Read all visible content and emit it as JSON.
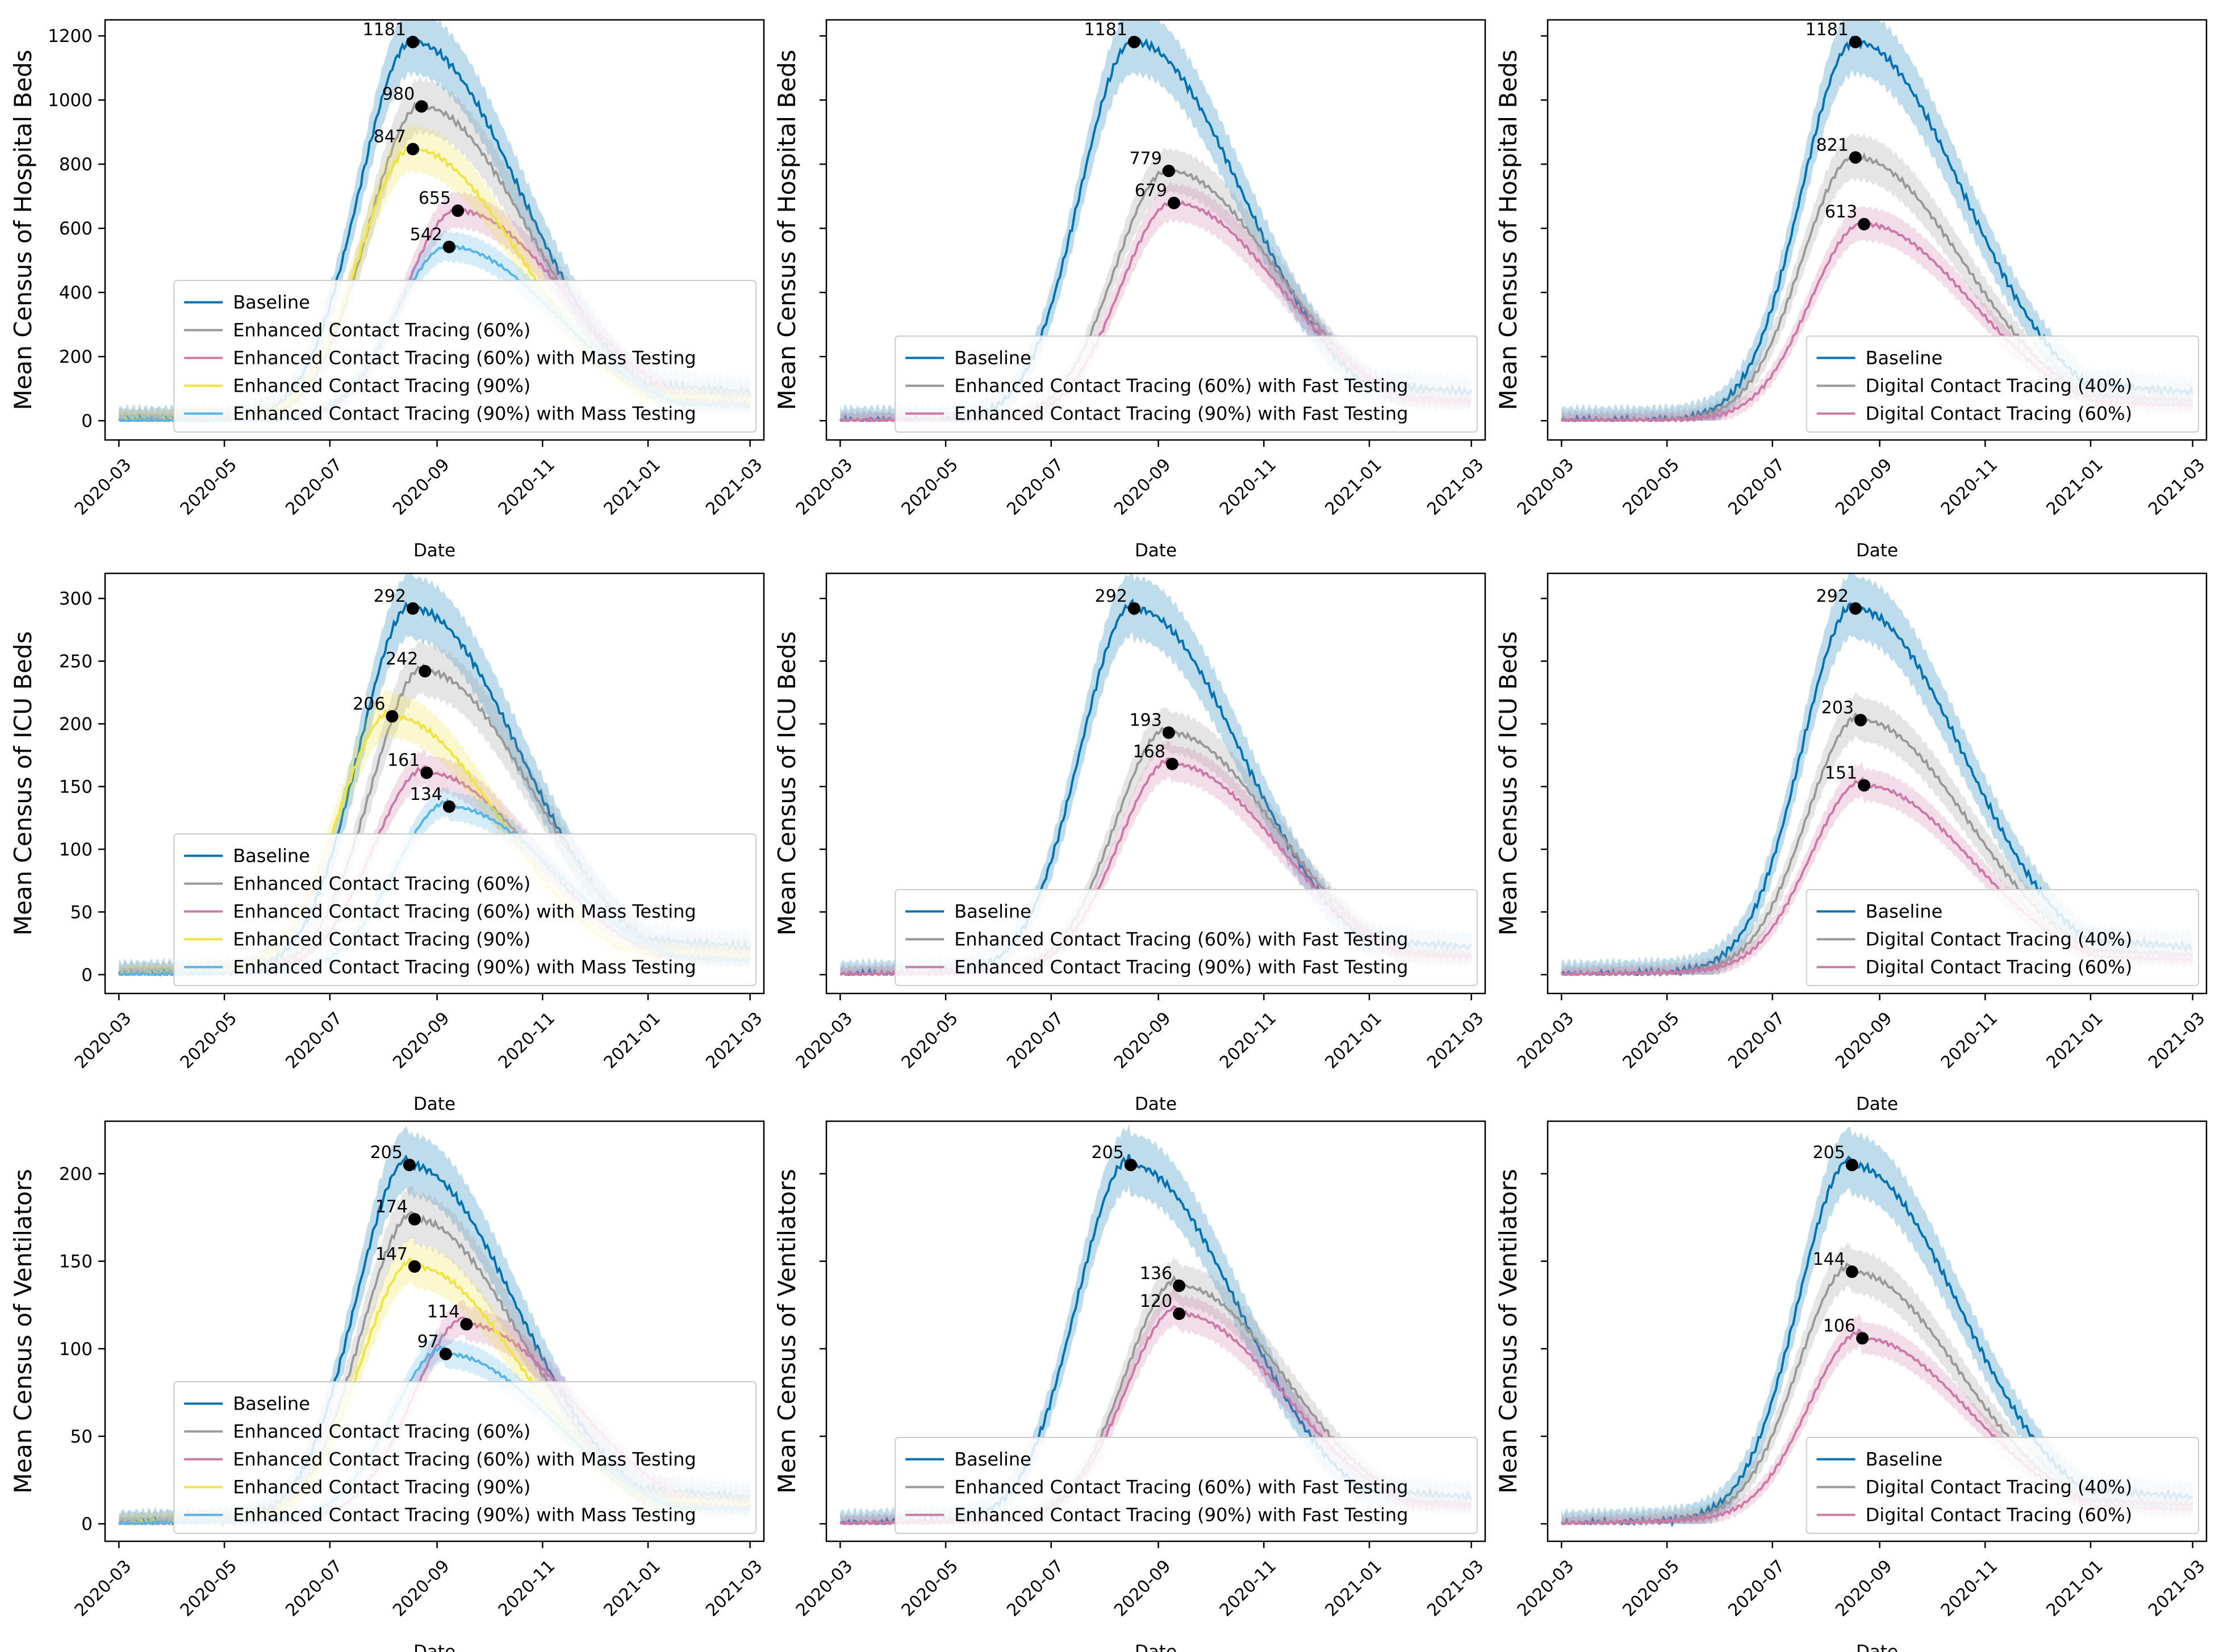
{
  "figure": {
    "date_xlabel": "Date",
    "date_ticks": [
      "2020-03",
      "2020-05",
      "2020-07",
      "2020-09",
      "2020-11",
      "2021-01",
      "2021-03"
    ],
    "date_tick_values": [
      0,
      61,
      122,
      184,
      245,
      306,
      365
    ],
    "x_range": [
      -8,
      373
    ]
  },
  "colors": {
    "baseline": "#0072B2",
    "enhanced_60": "#999999",
    "enhanced_60_mass": "#CC79A7",
    "enhanced_90": "#F0E442",
    "enhanced_90_mass": "#56B4E9",
    "enhanced_60_fast": "#999999",
    "enhanced_90_fast": "#CC79A7",
    "digital_40": "#999999",
    "digital_60": "#CC79A7",
    "peak_marker": "#000000"
  },
  "chart_data": [
    {
      "id": "p11",
      "type": "line",
      "ylabel": "Mean Census of Hospital Beds",
      "ylim": [
        -60,
        1250
      ],
      "yticks": [
        0,
        200,
        400,
        600,
        800,
        1000,
        1200
      ],
      "show_yticklabels": true,
      "legend_position": "lower-right",
      "series": [
        {
          "name": "Baseline",
          "color_key": "baseline",
          "peak": 1181,
          "peak_day": 170
        },
        {
          "name": "Enhanced Contact Tracing (60%)",
          "color_key": "enhanced_60",
          "peak": 980,
          "peak_day": 175
        },
        {
          "name": "Enhanced Contact Tracing (60%) with Mass Testing",
          "color_key": "enhanced_60_mass",
          "peak": 655,
          "peak_day": 196
        },
        {
          "name": "Enhanced Contact Tracing (90%)",
          "color_key": "enhanced_90",
          "peak": 847,
          "peak_day": 170
        },
        {
          "name": "Enhanced Contact Tracing (90%) with Mass Testing",
          "color_key": "enhanced_90_mass",
          "peak": 542,
          "peak_day": 191
        }
      ]
    },
    {
      "id": "p12",
      "type": "line",
      "ylabel": "Mean Census of Hospital Beds",
      "ylim": [
        -60,
        1250
      ],
      "yticks": [
        0,
        200,
        400,
        600,
        800,
        1000,
        1200
      ],
      "show_yticklabels": false,
      "legend_position": "lower-right",
      "series": [
        {
          "name": "Baseline",
          "color_key": "baseline",
          "peak": 1181,
          "peak_day": 170
        },
        {
          "name": "Enhanced Contact Tracing (60%) with Fast Testing",
          "color_key": "enhanced_60_fast",
          "peak": 779,
          "peak_day": 190
        },
        {
          "name": "Enhanced Contact Tracing (90%) with Fast Testing",
          "color_key": "enhanced_90_fast",
          "peak": 679,
          "peak_day": 193
        }
      ]
    },
    {
      "id": "p13",
      "type": "line",
      "ylabel": "Mean Census of Hospital Beds",
      "ylim": [
        -60,
        1250
      ],
      "yticks": [
        0,
        200,
        400,
        600,
        800,
        1000,
        1200
      ],
      "show_yticklabels": false,
      "legend_position": "lower-right",
      "series": [
        {
          "name": "Baseline",
          "color_key": "baseline",
          "peak": 1181,
          "peak_day": 170
        },
        {
          "name": "Digital Contact Tracing (40%)",
          "color_key": "digital_40",
          "peak": 821,
          "peak_day": 170
        },
        {
          "name": "Digital Contact Tracing (60%)",
          "color_key": "digital_60",
          "peak": 613,
          "peak_day": 175
        }
      ]
    },
    {
      "id": "p21",
      "type": "line",
      "ylabel": "Mean Census of ICU Beds",
      "ylim": [
        -15,
        320
      ],
      "yticks": [
        0,
        50,
        100,
        150,
        200,
        250,
        300
      ],
      "show_yticklabels": true,
      "legend_position": "lower-right",
      "series": [
        {
          "name": "Baseline",
          "color_key": "baseline",
          "peak": 292,
          "peak_day": 170
        },
        {
          "name": "Enhanced Contact Tracing (60%)",
          "color_key": "enhanced_60",
          "peak": 242,
          "peak_day": 177
        },
        {
          "name": "Enhanced Contact Tracing (60%) with Mass Testing",
          "color_key": "enhanced_60_mass",
          "peak": 161,
          "peak_day": 178
        },
        {
          "name": "Enhanced Contact Tracing (90%)",
          "color_key": "enhanced_90",
          "peak": 206,
          "peak_day": 158
        },
        {
          "name": "Enhanced Contact Tracing (90%) with Mass Testing",
          "color_key": "enhanced_90_mass",
          "peak": 134,
          "peak_day": 191
        }
      ]
    },
    {
      "id": "p22",
      "type": "line",
      "ylabel": "Mean Census of ICU Beds",
      "ylim": [
        -15,
        320
      ],
      "yticks": [
        0,
        50,
        100,
        150,
        200,
        250,
        300
      ],
      "show_yticklabels": false,
      "legend_position": "lower-right",
      "series": [
        {
          "name": "Baseline",
          "color_key": "baseline",
          "peak": 292,
          "peak_day": 170
        },
        {
          "name": "Enhanced Contact Tracing (60%) with Fast Testing",
          "color_key": "enhanced_60_fast",
          "peak": 193,
          "peak_day": 190
        },
        {
          "name": "Enhanced Contact Tracing (90%) with Fast Testing",
          "color_key": "enhanced_90_fast",
          "peak": 168,
          "peak_day": 192
        }
      ]
    },
    {
      "id": "p23",
      "type": "line",
      "ylabel": "Mean Census of ICU Beds",
      "ylim": [
        -15,
        320
      ],
      "yticks": [
        0,
        50,
        100,
        150,
        200,
        250,
        300
      ],
      "show_yticklabels": false,
      "legend_position": "lower-right",
      "series": [
        {
          "name": "Baseline",
          "color_key": "baseline",
          "peak": 292,
          "peak_day": 170
        },
        {
          "name": "Digital Contact Tracing (40%)",
          "color_key": "digital_40",
          "peak": 203,
          "peak_day": 173
        },
        {
          "name": "Digital Contact Tracing (60%)",
          "color_key": "digital_60",
          "peak": 151,
          "peak_day": 175
        }
      ]
    },
    {
      "id": "p31",
      "type": "line",
      "ylabel": "Mean Census of Ventilators",
      "ylim": [
        -10,
        230
      ],
      "yticks": [
        0,
        50,
        100,
        150,
        200
      ],
      "show_yticklabels": true,
      "legend_position": "lower-right",
      "series": [
        {
          "name": "Baseline",
          "color_key": "baseline",
          "peak": 205,
          "peak_day": 168
        },
        {
          "name": "Enhanced Contact Tracing (60%)",
          "color_key": "enhanced_60",
          "peak": 174,
          "peak_day": 171
        },
        {
          "name": "Enhanced Contact Tracing (60%) with Mass Testing",
          "color_key": "enhanced_60_mass",
          "peak": 114,
          "peak_day": 201
        },
        {
          "name": "Enhanced Contact Tracing (90%)",
          "color_key": "enhanced_90",
          "peak": 147,
          "peak_day": 171
        },
        {
          "name": "Enhanced Contact Tracing (90%) with Mass Testing",
          "color_key": "enhanced_90_mass",
          "peak": 97,
          "peak_day": 189
        }
      ]
    },
    {
      "id": "p32",
      "type": "line",
      "ylabel": "Mean Census of Ventilators",
      "ylim": [
        -10,
        230
      ],
      "yticks": [
        0,
        50,
        100,
        150,
        200
      ],
      "show_yticklabels": false,
      "legend_position": "lower-right",
      "series": [
        {
          "name": "Baseline",
          "color_key": "baseline",
          "peak": 205,
          "peak_day": 168
        },
        {
          "name": "Enhanced Contact Tracing (60%) with Fast Testing",
          "color_key": "enhanced_60_fast",
          "peak": 136,
          "peak_day": 196
        },
        {
          "name": "Enhanced Contact Tracing (90%) with Fast Testing",
          "color_key": "enhanced_90_fast",
          "peak": 120,
          "peak_day": 196
        }
      ]
    },
    {
      "id": "p33",
      "type": "line",
      "ylabel": "Mean Census of Ventilators",
      "ylim": [
        -10,
        230
      ],
      "yticks": [
        0,
        50,
        100,
        150,
        200
      ],
      "show_yticklabels": false,
      "legend_position": "lower-right",
      "series": [
        {
          "name": "Baseline",
          "color_key": "baseline",
          "peak": 205,
          "peak_day": 168
        },
        {
          "name": "Digital Contact Tracing (40%)",
          "color_key": "digital_40",
          "peak": 144,
          "peak_day": 168
        },
        {
          "name": "Digital Contact Tracing (60%)",
          "color_key": "digital_60",
          "peak": 106,
          "peak_day": 174
        }
      ]
    }
  ]
}
